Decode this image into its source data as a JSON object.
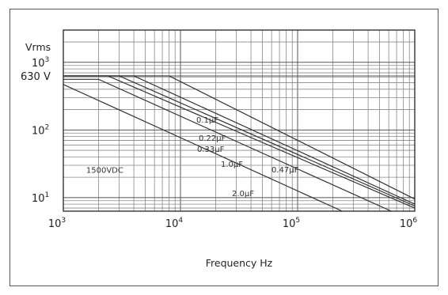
{
  "chart_data": {
    "type": "line",
    "title": "",
    "xlabel": "Frequency Hz",
    "ylabel": "Vrms",
    "x_scale": "log",
    "y_scale": "log",
    "xlim": [
      1000,
      1000000
    ],
    "ylim": [
      6.3,
      3000
    ],
    "grid": true,
    "x_ticks": [
      {
        "base": "10",
        "exp": "3"
      },
      {
        "base": "10",
        "exp": "4"
      },
      {
        "base": "10",
        "exp": "5"
      },
      {
        "base": "10",
        "exp": "6"
      }
    ],
    "y_ticks": [
      {
        "base": "10",
        "exp": "1",
        "value": 10
      },
      {
        "base": "10",
        "exp": "2",
        "value": 100
      },
      {
        "base": "10",
        "exp": "3",
        "value": 1000
      }
    ],
    "y_extra_label": {
      "text": "630 V",
      "value": 630
    },
    "annotations": [
      {
        "text": "1500VDC",
        "x": 2500,
        "y": 26
      }
    ],
    "series": [
      {
        "name": "0.1µF",
        "x": [
          1000,
          8000,
          1000000
        ],
        "y": [
          630,
          630,
          9.5
        ]
      },
      {
        "name": "0.22µF",
        "x": [
          1000,
          4000,
          1000000
        ],
        "y": [
          630,
          630,
          8.0
        ]
      },
      {
        "name": "0.33µF",
        "x": [
          1000,
          3000,
          1000000
        ],
        "y": [
          630,
          630,
          7.5
        ]
      },
      {
        "name": "0.47µF",
        "x": [
          1000,
          2400,
          1000000
        ],
        "y": [
          630,
          630,
          7.0
        ]
      },
      {
        "name": "1.0µF",
        "x": [
          1000,
          2000,
          630000
        ],
        "y": [
          560,
          560,
          6.3
        ]
      },
      {
        "name": "2.0µF",
        "x": [
          1000,
          240000
        ],
        "y": [
          470,
          6.3
        ]
      }
    ]
  }
}
